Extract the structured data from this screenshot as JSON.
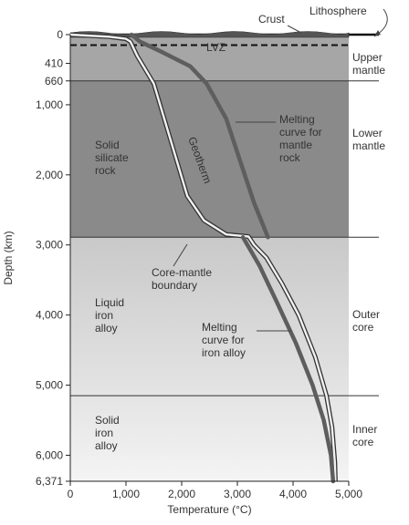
{
  "chart_data": {
    "type": "line",
    "xlabel": "Temperature (°C)",
    "ylabel": "Depth (km)",
    "xlim": [
      0,
      5000
    ],
    "ylim": [
      0,
      6371
    ],
    "y_inverted": true,
    "x_ticks": [
      0,
      1000,
      2000,
      3000,
      4000,
      5000
    ],
    "x_tick_labels": [
      "0",
      "1,000",
      "2,000",
      "3,000",
      "4,000",
      "5,000"
    ],
    "y_ticks": [
      0,
      410,
      660,
      1000,
      2000,
      3000,
      4000,
      5000,
      6000,
      6371
    ],
    "y_tick_labels": [
      "0",
      "410",
      "660",
      "1,000",
      "2,000",
      "3,000",
      "4,000",
      "5,000",
      "6,000",
      "6,371"
    ],
    "boundaries": [
      {
        "depth": 0,
        "name": "surface"
      },
      {
        "depth": 150,
        "name": "LVZ",
        "style": "dashed"
      },
      {
        "depth": 660,
        "name": "660"
      },
      {
        "depth": 2890,
        "name": "Core-mantle boundary"
      },
      {
        "depth": 5150,
        "name": "inner-core boundary"
      }
    ],
    "regions": [
      {
        "from": 0,
        "to": 660,
        "color": "#a6a6a6"
      },
      {
        "from": 660,
        "to": 2890,
        "color": "#8a8a8a"
      },
      {
        "from": 2890,
        "to": 5150,
        "color": "#d2d2d2"
      },
      {
        "from": 5150,
        "to": 6371,
        "color": "#e8e8e8"
      }
    ],
    "series": [
      {
        "name": "Geotherm",
        "style": "double",
        "x": [
          0,
          700,
          1000,
          1080,
          1200,
          1500,
          1800,
          2100,
          2400,
          2800,
          3200,
          3300,
          3520,
          3800,
          4100,
          4400,
          4600,
          4700,
          4750,
          4760
        ],
        "y": [
          0,
          30,
          60,
          100,
          300,
          700,
          1500,
          2300,
          2650,
          2850,
          2880,
          3000,
          3180,
          3550,
          4000,
          4600,
          5150,
          5600,
          6100,
          6371
        ]
      },
      {
        "name": "Melting curve for mantle rock",
        "style": "band",
        "x": [
          1100,
          1250,
          1650,
          2150,
          2450,
          2800,
          3050,
          3300,
          3550
        ],
        "y": [
          0,
          100,
          250,
          450,
          700,
          1200,
          1800,
          2400,
          2890
        ]
      },
      {
        "name": "Melting curve for iron alloy",
        "style": "band",
        "x": [
          3100,
          3400,
          3700,
          4050,
          4350,
          4550,
          4680,
          4720
        ],
        "y": [
          2890,
          3300,
          3800,
          4400,
          5000,
          5500,
          6000,
          6371
        ]
      }
    ],
    "annotations": {
      "lvz": "LVZ",
      "geotherm": "Geotherm",
      "melting_mantle": [
        "Melting",
        "curve for",
        "mantle",
        "rock"
      ],
      "core_mantle": [
        "Core-mantle",
        "boundary"
      ],
      "melting_iron": [
        "Melting",
        "curve for",
        "iron alloy"
      ],
      "solid_silicate": [
        "Solid",
        "silicate",
        "rock"
      ],
      "liquid_iron": [
        "Liquid",
        "iron",
        "alloy"
      ],
      "solid_iron": [
        "Solid",
        "iron",
        "alloy"
      ],
      "crust": "Crust",
      "lithosphere": "Lithosphere"
    },
    "layer_labels": {
      "upper_mantle": [
        "Upper",
        "mantle"
      ],
      "lower_mantle": [
        "Lower",
        "mantle"
      ],
      "outer_core": [
        "Outer",
        "core"
      ],
      "inner_core": [
        "Inner",
        "core"
      ]
    }
  }
}
